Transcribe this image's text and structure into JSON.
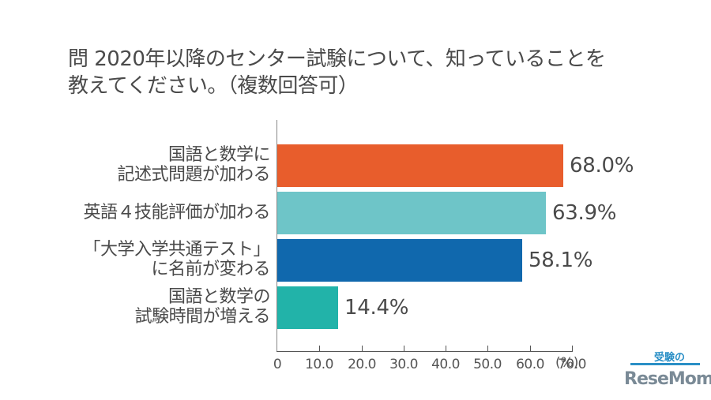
{
  "title": {
    "line1": "問 2020年以降のセンター試験について、知っていることを",
    "line2": "教えてください。（複数回答可）"
  },
  "chart_data": {
    "type": "bar",
    "orientation": "horizontal",
    "title": "問 2020年以降のセンター試験について、知っていることを教えてください。（複数回答可）",
    "categories": [
      "国語と数学に記述式問題が加わる",
      "英語４技能評価が加わる",
      "「大学入学共通テスト」に名前が変わる",
      "国語と数学の試験時間が増える"
    ],
    "values": [
      68.0,
      63.9,
      58.1,
      14.4
    ],
    "value_labels": [
      "68.0%",
      "63.9%",
      "58.1%",
      "14.4%"
    ],
    "colors": [
      "#E85D2C",
      "#6EC5C8",
      "#1068AD",
      "#22B3A9"
    ],
    "xlabel": "(%)",
    "ylabel": "",
    "xlim": [
      0,
      70
    ],
    "xticks": [
      "0",
      "10.0",
      "20.0",
      "30.0",
      "40.0",
      "50.0",
      "60.0",
      "70.0"
    ],
    "grid": false,
    "legend": "none"
  },
  "categories_display": [
    {
      "line1": "国語と数学に",
      "line2": "記述式問題が加わる"
    },
    {
      "line1": "英語４技能評価が加わる",
      "line2": ""
    },
    {
      "line1": "「大学入学共通テスト」",
      "line2": "に名前が変わる"
    },
    {
      "line1": "国語と数学の",
      "line2": "試験時間が増える"
    }
  ],
  "axis": {
    "ticks": [
      "0",
      "10.0",
      "20.0",
      "30.0",
      "40.0",
      "50.0",
      "60.0",
      "70.0"
    ],
    "unit": "(%)"
  },
  "logo": {
    "top": "受験の",
    "main": "ReseMom"
  }
}
